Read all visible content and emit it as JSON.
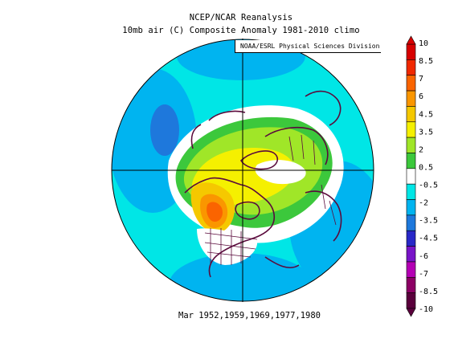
{
  "title_line1": "NCEP/NCAR Reanalysis",
  "title_line2": "10mb air (C) Composite Anomaly 1981-2010 climo",
  "credit": "NOAA/ESRL Physical Sciences Division",
  "caption": "Mar 1952,1959,1969,1977,1980",
  "colorbar": {
    "labels": [
      "10",
      "8.5",
      "7",
      "6",
      "4.5",
      "3.5",
      "2",
      "0.5",
      "-0.5",
      "-2",
      "-3.5",
      "-4.5",
      "-6",
      "-7",
      "-8.5",
      "-10"
    ],
    "colors": [
      "#d70000",
      "#f02800",
      "#fa6400",
      "#fa9600",
      "#f5c800",
      "#f5f000",
      "#a0e628",
      "#3cc83c",
      "#ffffff",
      "#00e6e6",
      "#00b4f0",
      "#1e78dc",
      "#2828c8",
      "#7814c8",
      "#b400b4",
      "#8c0064",
      "#5a003c"
    ]
  },
  "colors": {
    "ocean_far": "#00b4f0",
    "anomaly_cold": "#1e78dc",
    "anomaly_neutral_cool": "#00e6e6",
    "anomaly_warm": "#a0e628",
    "anomaly_hot": "#f5c800",
    "anomaly_max": "#fa6400",
    "coast": "#5a0a3c"
  }
}
